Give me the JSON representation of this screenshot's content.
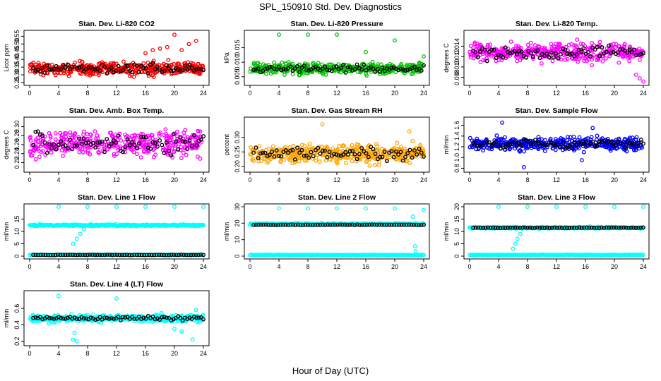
{
  "title": "SPL_150910  Std. Dev. Diagnostics",
  "xlabel": "Hour of Day (UTC)",
  "chart_data": [
    {
      "type": "scatter",
      "title": "Stan. Dev. Li-820 CO2",
      "ylabel": "Licor ppm",
      "color": "#ff0000",
      "xlim": [
        0,
        24
      ],
      "ylim": [
        0.25,
        0.57
      ],
      "xticks": [
        0,
        4,
        8,
        12,
        16,
        20,
        24
      ],
      "yticks": [
        "0.25",
        "0.30",
        "0.35",
        "0.40",
        "0.45",
        "0.50",
        "0.55"
      ],
      "ytickvals": [
        0.25,
        0.3,
        0.35,
        0.4,
        0.45,
        0.5,
        0.55
      ],
      "base": 0.34,
      "spread": 0.07,
      "black_base": 0.34,
      "black_spread": 0.05,
      "outliers": [
        [
          16,
          0.44
        ],
        [
          17,
          0.46
        ],
        [
          18,
          0.47
        ],
        [
          19,
          0.48
        ],
        [
          20,
          0.56
        ],
        [
          21,
          0.46
        ],
        [
          22,
          0.5
        ],
        [
          23,
          0.52
        ]
      ]
    },
    {
      "type": "scatter",
      "title": "Stan. Dev. Li-820 Pressure",
      "ylabel": "kPa",
      "color": "#00c000",
      "xlim": [
        0,
        24
      ],
      "ylim": [
        0.003,
        0.02
      ],
      "xticks": [
        0,
        4,
        8,
        12,
        16,
        20,
        24
      ],
      "yticks": [
        "0.005",
        "0.010",
        "0.015"
      ],
      "ytickvals": [
        0.005,
        0.01,
        0.015
      ],
      "base": 0.0078,
      "spread": 0.003,
      "black_base": 0.0078,
      "black_spread": 0.002,
      "outliers": [
        [
          4,
          0.0195
        ],
        [
          8,
          0.0195
        ],
        [
          12,
          0.0195
        ],
        [
          16,
          0.0135
        ],
        [
          20,
          0.0175
        ],
        [
          24,
          0.012
        ]
      ]
    },
    {
      "type": "scatter",
      "title": "Stan. Dev. Li-820 Temp.",
      "ylabel": "degrees C",
      "color": "#ff00ff",
      "xlim": [
        0,
        24
      ],
      "ylim": [
        0.007,
        0.0165
      ],
      "xticks": [
        0,
        4,
        8,
        12,
        16,
        20,
        24
      ],
      "yticks": [
        "0.008",
        "0.010",
        "0.012",
        "0.014"
      ],
      "ytickvals": [
        0.008,
        0.01,
        0.012,
        0.014
      ],
      "base": 0.0128,
      "spread": 0.0028,
      "black_base": 0.0128,
      "black_spread": 0.002,
      "outliers": [
        [
          23,
          0.0085
        ],
        [
          23.5,
          0.0078
        ],
        [
          24,
          0.0072
        ]
      ]
    },
    {
      "type": "scatter",
      "title": "Stan. Dev. Amb. Box Temp.",
      "ylabel": "degrees C",
      "color": "#ff00ff",
      "xlim": [
        0,
        24
      ],
      "ylim": [
        0.205,
        0.315
      ],
      "xticks": [
        0,
        4,
        8,
        12,
        16,
        20,
        24
      ],
      "yticks": [
        "0.22",
        "0.24",
        "0.26",
        "0.28",
        "0.30"
      ],
      "ytickvals": [
        0.22,
        0.24,
        0.26,
        0.28,
        0.3
      ],
      "base": 0.262,
      "spread": 0.045,
      "black_base": 0.262,
      "black_spread": 0.04,
      "outliers": []
    },
    {
      "type": "scatter",
      "title": "Stan. Dev. Gas Stream RH",
      "ylabel": "percent",
      "color": "#ffa500",
      "xlim": [
        0,
        24
      ],
      "ylim": [
        0.19,
        0.36
      ],
      "xticks": [
        0,
        4,
        8,
        12,
        16,
        20,
        24
      ],
      "yticks": [
        "0.20",
        "0.25",
        "0.30"
      ],
      "ytickvals": [
        0.2,
        0.25,
        0.3
      ],
      "base": 0.245,
      "spread": 0.05,
      "black_base": 0.245,
      "black_spread": 0.035,
      "outliers": [
        [
          10,
          0.345
        ],
        [
          22,
          0.32
        ]
      ]
    },
    {
      "type": "scatter",
      "title": "Stan. Dev. Sample Flow",
      "ylabel": "ml/min",
      "color": "#0000ff",
      "xlim": [
        0,
        24
      ],
      "ylim": [
        0.78,
        1.7
      ],
      "xticks": [
        0,
        4,
        8,
        12,
        16,
        20,
        24
      ],
      "yticks": [
        "0.8",
        "1.0",
        "1.2",
        "1.4",
        "1.6"
      ],
      "ytickvals": [
        0.8,
        1.0,
        1.2,
        1.4,
        1.6
      ],
      "base": 1.25,
      "spread": 0.2,
      "black_base": 1.25,
      "black_spread": 0.12,
      "outliers": [
        [
          4.5,
          1.65
        ],
        [
          7.5,
          0.82
        ],
        [
          15.5,
          0.95
        ],
        [
          17,
          1.55
        ]
      ]
    },
    {
      "type": "scatter",
      "title": "Stan. Dev. Line 1 Flow",
      "ylabel": "ml/min",
      "color": "#00ffff",
      "xlim": [
        0,
        24
      ],
      "ylim": [
        0,
        20
      ],
      "xticks": [
        0,
        4,
        8,
        12,
        16,
        20,
        24
      ],
      "yticks": [
        "0",
        "5",
        "10",
        "15"
      ],
      "ytickvals": [
        0,
        5,
        10,
        15
      ],
      "mode": "lines",
      "cyan_level": 12.5,
      "cyan_low": 0.5,
      "black_level": 0.5,
      "outliers": [
        [
          4,
          20
        ],
        [
          8,
          20
        ],
        [
          12,
          20
        ],
        [
          16,
          20
        ],
        [
          20,
          20
        ],
        [
          24,
          20
        ],
        [
          6,
          5
        ],
        [
          6.5,
          7
        ],
        [
          7,
          9
        ],
        [
          7.5,
          11
        ]
      ]
    },
    {
      "type": "scatter",
      "title": "Stan. Dev. Line 2 Flow",
      "ylabel": "ml/min",
      "color": "#00ffff",
      "xlim": [
        0,
        24
      ],
      "ylim": [
        0,
        30
      ],
      "xticks": [
        0,
        4,
        8,
        12,
        16,
        20,
        24
      ],
      "yticks": [
        "0",
        "10",
        "20",
        "30"
      ],
      "ytickvals": [
        0,
        10,
        20,
        30
      ],
      "mode": "lines",
      "cyan_level": 19.5,
      "cyan_low": 0.7,
      "black_level": 19.0,
      "black_on_top": true,
      "outliers": [
        [
          4,
          29
        ],
        [
          8,
          29
        ],
        [
          12,
          29
        ],
        [
          16,
          29
        ],
        [
          20,
          29
        ],
        [
          24,
          28
        ],
        [
          22.5,
          24
        ],
        [
          22.8,
          6
        ],
        [
          22.9,
          3
        ]
      ]
    },
    {
      "type": "scatter",
      "title": "Stan. Dev. Line 3 Flow",
      "ylabel": "ml/min",
      "color": "#00ffff",
      "xlim": [
        0,
        24
      ],
      "ylim": [
        0,
        20
      ],
      "xticks": [
        0,
        4,
        8,
        12,
        16,
        20,
        24
      ],
      "yticks": [
        "0",
        "5",
        "10",
        "15",
        "20"
      ],
      "ytickvals": [
        0,
        5,
        10,
        15,
        20
      ],
      "mode": "lines",
      "cyan_level": 11.5,
      "cyan_low": 0.5,
      "black_level": 11.5,
      "black_on_top": true,
      "outliers": [
        [
          4,
          20
        ],
        [
          8,
          20
        ],
        [
          12,
          20
        ],
        [
          16,
          20
        ],
        [
          20,
          20
        ],
        [
          24,
          20
        ],
        [
          6,
          3
        ],
        [
          6.3,
          5
        ],
        [
          6.6,
          7
        ],
        [
          7,
          9
        ]
      ]
    },
    {
      "type": "scatter",
      "title": "Stan. Dev. Line 4 (LT) Flow",
      "ylabel": "ml/min",
      "color": "#00ffff",
      "xlim": [
        0,
        24
      ],
      "ylim": [
        0.18,
        0.78
      ],
      "xticks": [
        0,
        4,
        8,
        12,
        16,
        20,
        24
      ],
      "yticks": [
        "0.2",
        "0.4",
        "0.6"
      ],
      "ytickvals": [
        0.2,
        0.4,
        0.6
      ],
      "base": 0.48,
      "spread": 0.07,
      "black_base": 0.48,
      "black_spread": 0.04,
      "outliers": [
        [
          4,
          0.75
        ],
        [
          12,
          0.72
        ],
        [
          6,
          0.22
        ],
        [
          6.5,
          0.2
        ],
        [
          6.2,
          0.3
        ],
        [
          20,
          0.35
        ],
        [
          21,
          0.32
        ],
        [
          22.5,
          0.22
        ],
        [
          23,
          0.58
        ]
      ]
    }
  ]
}
